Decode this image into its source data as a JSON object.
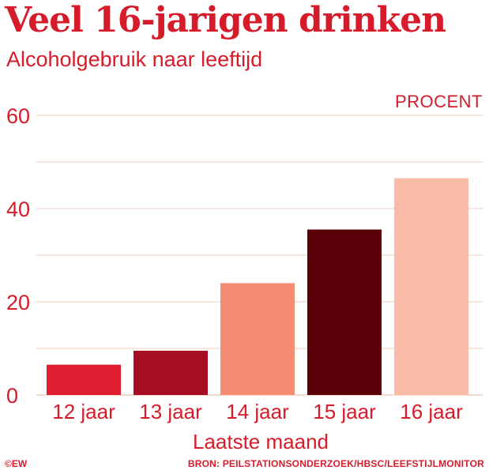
{
  "title": "Veel 16-jarigen drinken",
  "subtitle": "Alcoholgebruik naar leeftijd",
  "unit_label": "PROCENT",
  "credit": "©EW",
  "source": "BRON: PEILSTATIONSONDERZOEK/HBSC/LEEFSTIJLMONITOR",
  "chart_data": {
    "type": "bar",
    "categories": [
      "12 jaar",
      "13 jaar",
      "14 jaar",
      "15 jaar",
      "16 jaar"
    ],
    "values": [
      6.5,
      9.5,
      24,
      35.5,
      46.5
    ],
    "colors": [
      "#e01e32",
      "#a50e22",
      "#f58c74",
      "#5a0008",
      "#f8bca6"
    ],
    "xlabel": "Laatste maand",
    "ylabel": "",
    "ylim": [
      0,
      60
    ],
    "yticks": [
      0,
      20,
      40,
      60
    ],
    "grid": true,
    "text_color": "#d61c2a",
    "grid_color": "#f2cfbf"
  }
}
